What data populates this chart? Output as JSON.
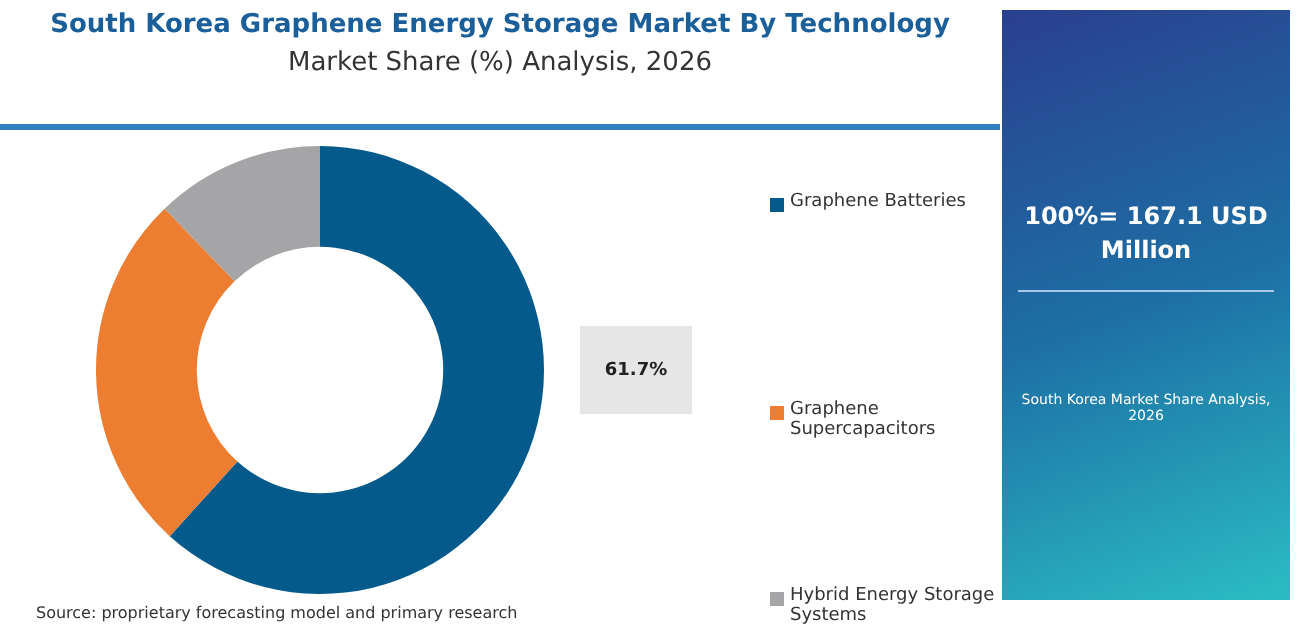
{
  "chart_data": {
    "type": "donut",
    "title": "South Korea  Graphene Energy Storage Market  By Technology",
    "subtitle": "Market Share (%) Analysis, 2026",
    "categories": [
      "Graphene Batteries",
      "Graphene Supercapacitors",
      "Hybrid Energy Storage Systems"
    ],
    "values": [
      61.7,
      26.1,
      12.2
    ],
    "colors": [
      "#055a8c",
      "#ed7d31",
      "#a5a5a7"
    ],
    "value_labels": [
      "61.7%",
      null,
      null
    ],
    "legend": "right",
    "annotations": [
      "100%= 167.1 USD Million",
      "South Korea Market Share Analysis, 2026",
      "Source: proprietary forecasting model and primary research"
    ]
  }
}
